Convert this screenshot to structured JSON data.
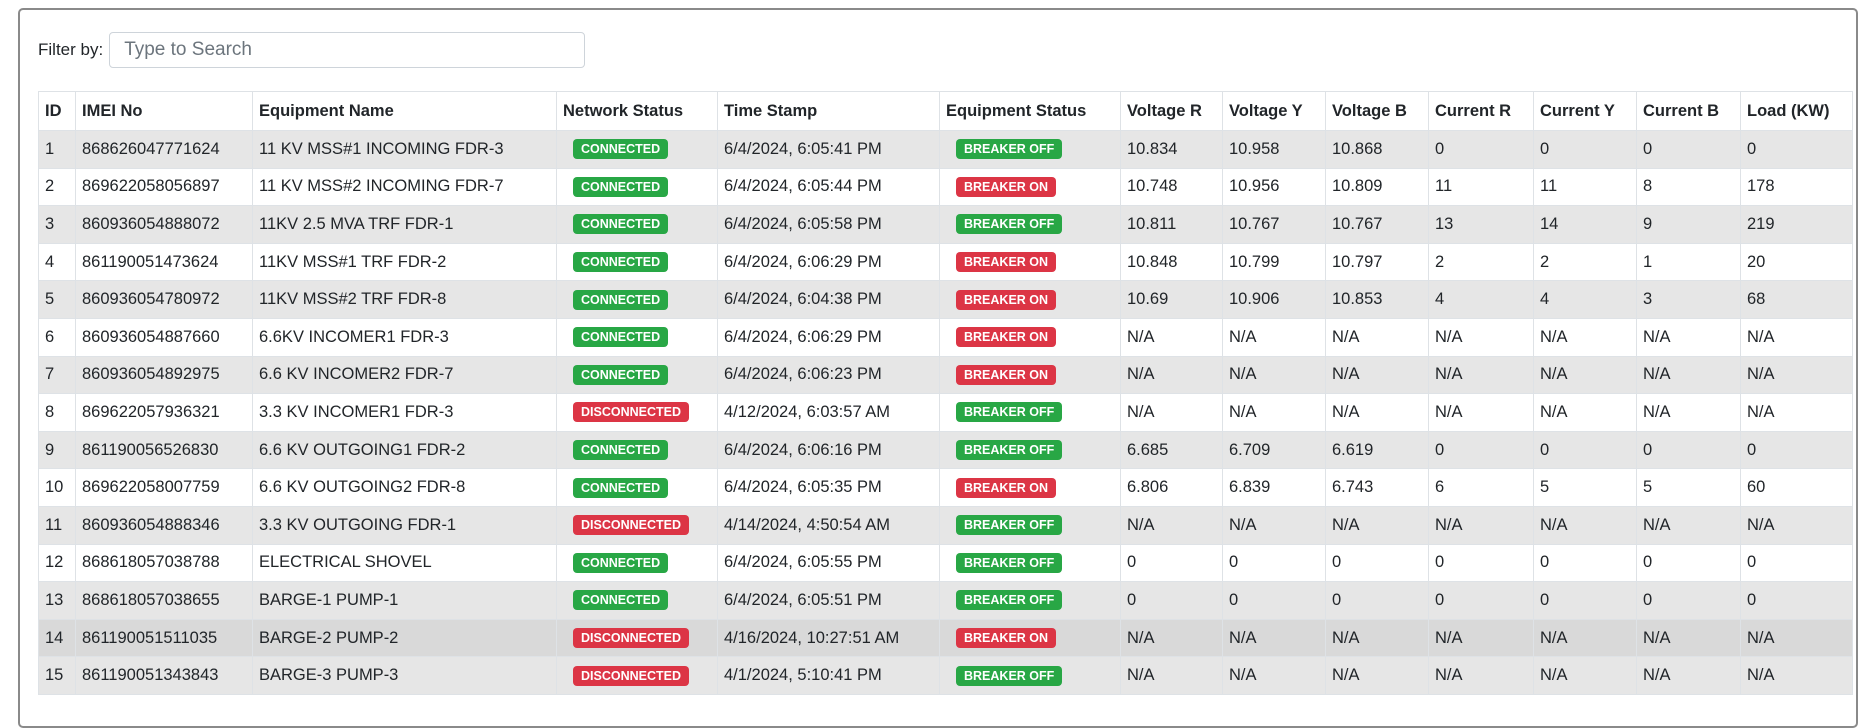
{
  "filter": {
    "label": "Filter by:",
    "placeholder": "Type to Search",
    "value": ""
  },
  "colors": {
    "connected": "#28a745",
    "disconnected": "#dc3545",
    "breaker_off": "#28a745",
    "breaker_on": "#dc3545"
  },
  "columns": [
    "ID",
    "IMEI No",
    "Equipment Name",
    "Network Status",
    "Time Stamp",
    "Equipment Status",
    "Voltage R",
    "Voltage Y",
    "Voltage B",
    "Current R",
    "Current Y",
    "Current B",
    "Load (KW)"
  ],
  "rows": [
    [
      "1",
      "868626047771624",
      "11 KV MSS#1 INCOMING FDR-3",
      "CONNECTED",
      "6/4/2024, 6:05:41 PM",
      "BREAKER OFF",
      "10.834",
      "10.958",
      "10.868",
      "0",
      "0",
      "0",
      "0"
    ],
    [
      "2",
      "869622058056897",
      "11 KV MSS#2 INCOMING FDR-7",
      "CONNECTED",
      "6/4/2024, 6:05:44 PM",
      "BREAKER ON",
      "10.748",
      "10.956",
      "10.809",
      "11",
      "11",
      "8",
      "178"
    ],
    [
      "3",
      "860936054888072",
      "11KV 2.5 MVA TRF FDR-1",
      "CONNECTED",
      "6/4/2024, 6:05:58 PM",
      "BREAKER OFF",
      "10.811",
      "10.767",
      "10.767",
      "13",
      "14",
      "9",
      "219"
    ],
    [
      "4",
      "861190051473624",
      "11KV MSS#1 TRF FDR-2",
      "CONNECTED",
      "6/4/2024, 6:06:29 PM",
      "BREAKER ON",
      "10.848",
      "10.799",
      "10.797",
      "2",
      "2",
      "1",
      "20"
    ],
    [
      "5",
      "860936054780972",
      "11KV MSS#2 TRF FDR-8",
      "CONNECTED",
      "6/4/2024, 6:04:38 PM",
      "BREAKER ON",
      "10.69",
      "10.906",
      "10.853",
      "4",
      "4",
      "3",
      "68"
    ],
    [
      "6",
      "860936054887660",
      "6.6KV INCOMER1 FDR-3",
      "CONNECTED",
      "6/4/2024, 6:06:29 PM",
      "BREAKER ON",
      "N/A",
      "N/A",
      "N/A",
      "N/A",
      "N/A",
      "N/A",
      "N/A"
    ],
    [
      "7",
      "860936054892975",
      "6.6 KV INCOMER2 FDR-7",
      "CONNECTED",
      "6/4/2024, 6:06:23 PM",
      "BREAKER ON",
      "N/A",
      "N/A",
      "N/A",
      "N/A",
      "N/A",
      "N/A",
      "N/A"
    ],
    [
      "8",
      "869622057936321",
      "3.3 KV INCOMER1 FDR-3",
      "DISCONNECTED",
      "4/12/2024, 6:03:57 AM",
      "BREAKER OFF",
      "N/A",
      "N/A",
      "N/A",
      "N/A",
      "N/A",
      "N/A",
      "N/A"
    ],
    [
      "9",
      "861190056526830",
      "6.6 KV OUTGOING1 FDR-2",
      "CONNECTED",
      "6/4/2024, 6:06:16 PM",
      "BREAKER OFF",
      "6.685",
      "6.709",
      "6.619",
      "0",
      "0",
      "0",
      "0"
    ],
    [
      "10",
      "869622058007759",
      "6.6 KV OUTGOING2 FDR-8",
      "CONNECTED",
      "6/4/2024, 6:05:35 PM",
      "BREAKER ON",
      "6.806",
      "6.839",
      "6.743",
      "6",
      "5",
      "5",
      "60"
    ],
    [
      "11",
      "860936054888346",
      "3.3 KV OUTGOING FDR-1",
      "DISCONNECTED",
      "4/14/2024, 4:50:54 AM",
      "BREAKER OFF",
      "N/A",
      "N/A",
      "N/A",
      "N/A",
      "N/A",
      "N/A",
      "N/A"
    ],
    [
      "12",
      "868618057038788",
      "ELECTRICAL SHOVEL",
      "CONNECTED",
      "6/4/2024, 6:05:55 PM",
      "BREAKER OFF",
      "0",
      "0",
      "0",
      "0",
      "0",
      "0",
      "0"
    ],
    [
      "13",
      "868618057038655",
      "BARGE-1 PUMP-1",
      "CONNECTED",
      "6/4/2024, 6:05:51 PM",
      "BREAKER OFF",
      "0",
      "0",
      "0",
      "0",
      "0",
      "0",
      "0"
    ],
    [
      "14",
      "861190051511035",
      "BARGE-2 PUMP-2",
      "DISCONNECTED",
      "4/16/2024, 10:27:51 AM",
      "BREAKER ON",
      "N/A",
      "N/A",
      "N/A",
      "N/A",
      "N/A",
      "N/A",
      "N/A"
    ],
    [
      "15",
      "861190051343843",
      "BARGE-3 PUMP-3",
      "DISCONNECTED",
      "4/1/2024, 5:10:41 PM",
      "BREAKER OFF",
      "N/A",
      "N/A",
      "N/A",
      "N/A",
      "N/A",
      "N/A",
      "N/A"
    ]
  ],
  "hovered_row": 14
}
